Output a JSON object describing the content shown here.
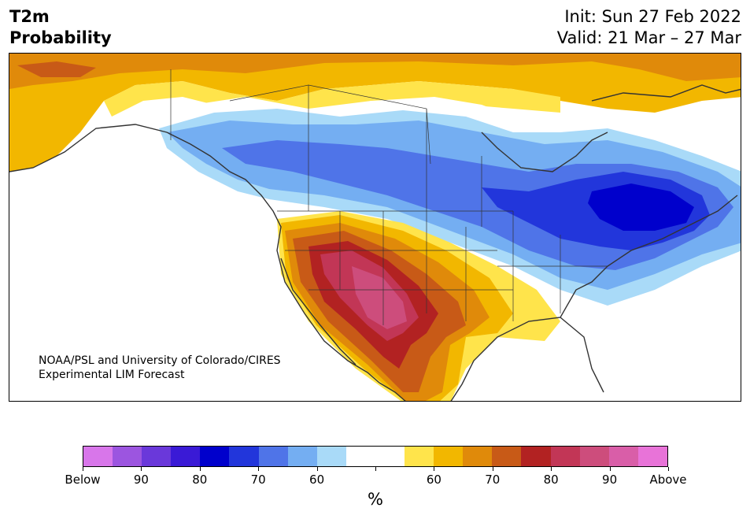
{
  "header": {
    "title_line1": "T2m",
    "title_line2": "Probability",
    "init": "Init: Sun 27 Feb 2022",
    "valid": "Valid: 21 Mar – 27 Mar"
  },
  "credit": {
    "line1": "NOAA/PSL and University of Colorado/CIRES",
    "line2": "Experimental LIM Forecast"
  },
  "colorbar": {
    "colors": [
      "#d876ea",
      "#9c55e0",
      "#6a38da",
      "#3a1ad6",
      "#0000cc",
      "#2236db",
      "#4f74e8",
      "#74aef2",
      "#a9daf8",
      "#ffffff",
      "#ffffff",
      "#ffe44b",
      "#f2b700",
      "#e08a0a",
      "#c85a17",
      "#b22222",
      "#c23656",
      "#cd4d7c",
      "#d95ea8",
      "#e873d8"
    ],
    "labels": [
      "Below",
      "90",
      "80",
      "70",
      "60",
      "",
      "60",
      "70",
      "80",
      "90",
      "Above"
    ],
    "unit": "%"
  },
  "map": {
    "colors": {
      "strong_cold": "#0000cc",
      "cold": "#2236db",
      "mid_cold": "#4f74e8",
      "light_cold": "#74aef2",
      "faint_cold": "#a9daf8",
      "faint_warm": "#ffe44b",
      "light_warm": "#f2b700",
      "mid_warm": "#e08a0a",
      "warm": "#c85a17",
      "hot": "#b22222",
      "very_hot": "#c23656",
      "extreme_hot": "#cd4d7c"
    }
  }
}
